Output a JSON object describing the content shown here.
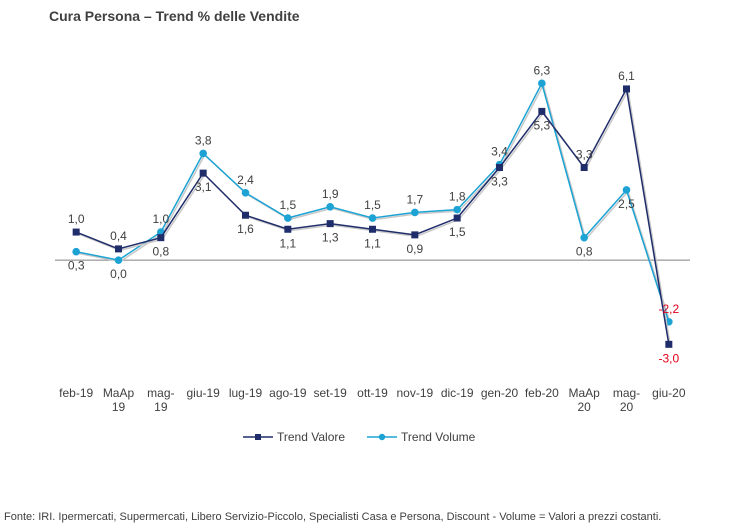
{
  "chart_data": {
    "type": "line",
    "title": "Cura Persona –  Trend % delle Vendite",
    "categories": [
      [
        "feb-19"
      ],
      [
        "MaAp",
        "19"
      ],
      [
        "mag-",
        "19"
      ],
      [
        "giu-19"
      ],
      [
        "lug-19"
      ],
      [
        "ago-19"
      ],
      [
        "set-19"
      ],
      [
        "ott-19"
      ],
      [
        "nov-19"
      ],
      [
        "dic-19"
      ],
      [
        "gen-20"
      ],
      [
        "feb-20"
      ],
      [
        "MaAp",
        "20"
      ],
      [
        "mag-",
        "20"
      ],
      [
        "giu-20"
      ]
    ],
    "series": [
      {
        "name": "Trend Valore",
        "color": "#1f2d6b",
        "marker": "square",
        "values": [
          1.0,
          0.4,
          0.8,
          3.1,
          1.6,
          1.1,
          1.3,
          1.1,
          0.9,
          1.5,
          3.3,
          5.3,
          3.3,
          6.1,
          -3.0
        ],
        "labels": [
          "1,0",
          "0,4",
          "0,8",
          "3,1",
          "1,6",
          "1,1",
          "1,3",
          "1,1",
          "0,9",
          "1,5",
          "3,3",
          "5,3",
          "3,3",
          "6,1",
          "-3,0"
        ]
      },
      {
        "name": "Trend Volume",
        "color": "#1ca3d4",
        "marker": "circle",
        "values": [
          0.3,
          0.0,
          1.0,
          3.8,
          2.4,
          1.5,
          1.9,
          1.5,
          1.7,
          1.8,
          3.4,
          6.3,
          0.8,
          2.5,
          -2.2
        ],
        "labels": [
          "0,3",
          "0,0",
          "1,0",
          "3,8",
          "2,4",
          "1,5",
          "1,9",
          "1,5",
          "1,7",
          "1,8",
          "3,4",
          "6,3",
          "0,8",
          "2,5",
          "-2,2"
        ]
      }
    ],
    "ylim": [
      -4.2,
      8.2
    ],
    "grid": false,
    "legend_position": "bottom",
    "negative_label_color": "#e0001a"
  },
  "legend": {
    "valore": "Trend Valore",
    "volume": "Trend Volume"
  },
  "footer": "Fonte: IRI. Ipermercati, Supermercati, Libero Servizio-Piccolo,  Specialisti Casa e Persona, Discount -  Volume =  Valori a prezzi  costanti."
}
